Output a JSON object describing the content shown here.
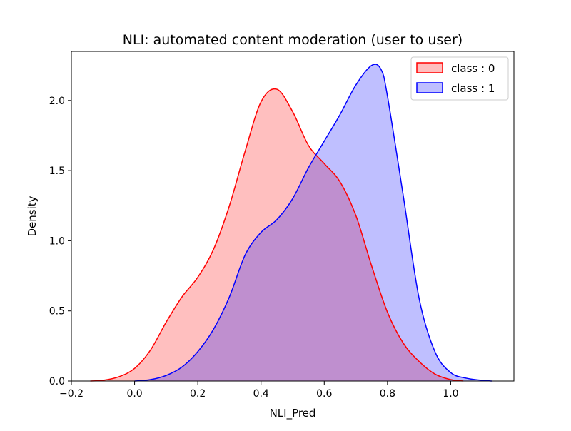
{
  "chart_data": {
    "type": "area",
    "title": "NLI: automated content moderation (user to user)",
    "xlabel": "NLI_Pred",
    "ylabel": "Density",
    "xlim": [
      -0.2,
      1.2
    ],
    "ylim": [
      0,
      2.35
    ],
    "xticks": [
      -0.2,
      0.0,
      0.2,
      0.4,
      0.6,
      0.8,
      1.0
    ],
    "xtick_labels": [
      "−0.2",
      "0.0",
      "0.2",
      "0.4",
      "0.6",
      "0.8",
      "1.0"
    ],
    "yticks": [
      0.0,
      0.5,
      1.0,
      1.5,
      2.0
    ],
    "ytick_labels": [
      "0.0",
      "0.5",
      "1.0",
      "1.5",
      "2.0"
    ],
    "grid": false,
    "legend_position": "top-right",
    "series": [
      {
        "name": "class : 0",
        "line_color": "#ff0000",
        "fill_color": "#ff0000",
        "fill_opacity": 0.25,
        "x": [
          -0.14,
          -0.1,
          -0.05,
          0.0,
          0.05,
          0.1,
          0.15,
          0.2,
          0.25,
          0.3,
          0.35,
          0.4,
          0.45,
          0.5,
          0.55,
          0.6,
          0.65,
          0.7,
          0.75,
          0.8,
          0.85,
          0.9,
          0.95,
          1.0,
          1.04
        ],
        "y": [
          0.0,
          0.005,
          0.03,
          0.09,
          0.22,
          0.42,
          0.6,
          0.74,
          0.94,
          1.25,
          1.64,
          1.99,
          2.08,
          1.92,
          1.68,
          1.55,
          1.42,
          1.18,
          0.82,
          0.49,
          0.27,
          0.14,
          0.05,
          0.01,
          0.0
        ]
      },
      {
        "name": "class : 1",
        "line_color": "#0000ff",
        "fill_color": "#0000ff",
        "fill_opacity": 0.25,
        "x": [
          0.0,
          0.05,
          0.1,
          0.15,
          0.2,
          0.25,
          0.3,
          0.35,
          0.4,
          0.45,
          0.5,
          0.55,
          0.6,
          0.65,
          0.7,
          0.75,
          0.78,
          0.8,
          0.85,
          0.9,
          0.95,
          1.0,
          1.05,
          1.1,
          1.13
        ],
        "y": [
          0.0,
          0.01,
          0.04,
          0.1,
          0.21,
          0.37,
          0.6,
          0.9,
          1.06,
          1.15,
          1.3,
          1.52,
          1.71,
          1.9,
          2.11,
          2.25,
          2.22,
          2.03,
          1.32,
          0.59,
          0.21,
          0.06,
          0.02,
          0.005,
          0.0
        ]
      }
    ]
  }
}
